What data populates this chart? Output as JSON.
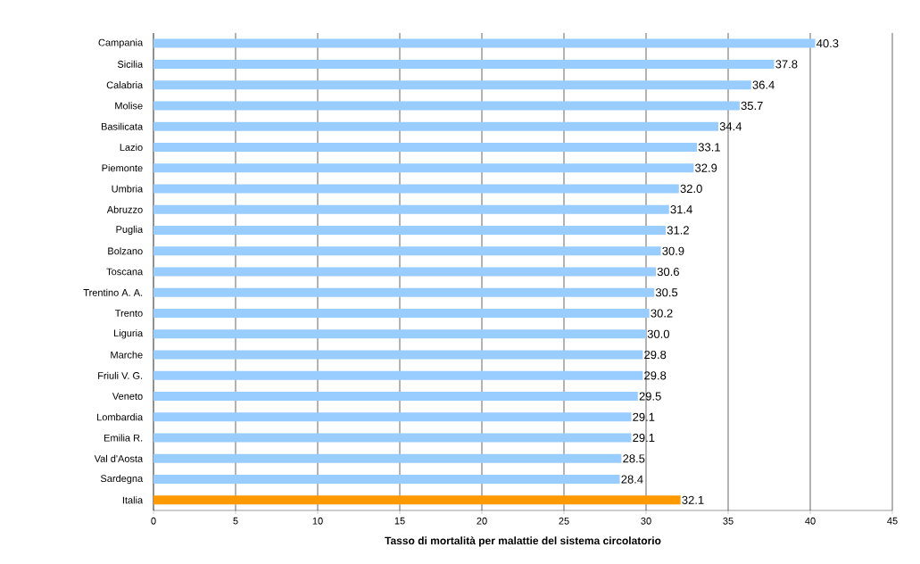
{
  "chart_data": {
    "type": "bar",
    "orientation": "horizontal",
    "categories": [
      "Campania",
      "Sicilia",
      "Calabria",
      "Molise",
      "Basilicata",
      "Lazio",
      "Piemonte",
      "Umbria",
      "Abruzzo",
      "Puglia",
      "Bolzano",
      "Toscana",
      "Trentino A. A.",
      "Trento",
      "Liguria",
      "Marche",
      "Friuli V. G.",
      "Veneto",
      "Lombardia",
      "Emilia R.",
      "Val d'Aosta",
      "Sardegna",
      "Italia"
    ],
    "values": [
      40.3,
      37.8,
      36.4,
      35.7,
      34.4,
      33.1,
      32.9,
      32.0,
      31.4,
      31.2,
      30.9,
      30.6,
      30.5,
      30.2,
      30.0,
      29.8,
      29.8,
      29.5,
      29.1,
      29.1,
      28.5,
      28.4,
      32.1
    ],
    "colors": [
      "#99ccff",
      "#99ccff",
      "#99ccff",
      "#99ccff",
      "#99ccff",
      "#99ccff",
      "#99ccff",
      "#99ccff",
      "#99ccff",
      "#99ccff",
      "#99ccff",
      "#99ccff",
      "#99ccff",
      "#99ccff",
      "#99ccff",
      "#99ccff",
      "#99ccff",
      "#99ccff",
      "#99ccff",
      "#99ccff",
      "#99ccff",
      "#99ccff",
      "#ff9900"
    ],
    "xlabel": "Tasso di mortalità per malattie del sistema circolatorio",
    "xlim": [
      0,
      45
    ],
    "xticks": [
      0,
      5,
      10,
      15,
      20,
      25,
      30,
      35,
      40,
      45
    ],
    "value_labels": [
      "40.3",
      "37.8",
      "36.4",
      "35.7",
      "34.4",
      "33.1",
      "32.9",
      "32.0",
      "31.4",
      "31.2",
      "30.9",
      "30.6",
      "30.5",
      "30.2",
      "30.0",
      "29.8",
      "29.8",
      "29.5",
      "29.1",
      "29.1",
      "28.5",
      "28.4",
      "32.1"
    ],
    "grid": "x"
  }
}
